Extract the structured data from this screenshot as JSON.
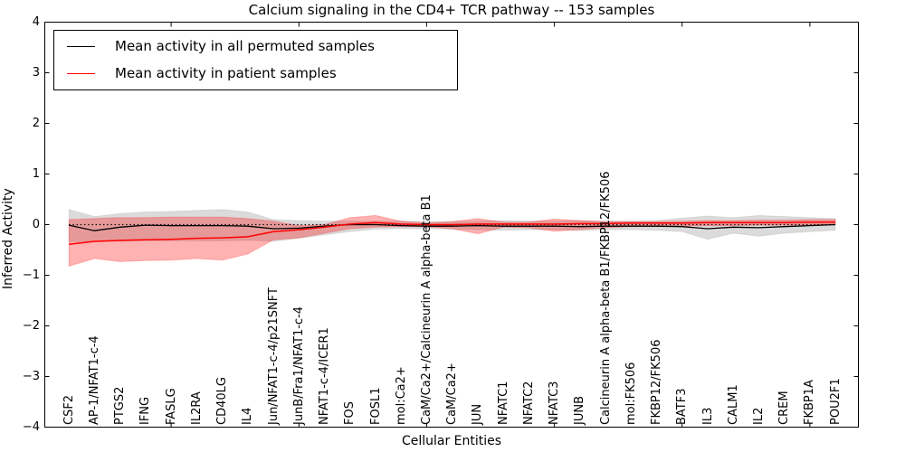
{
  "title": "Calcium signaling in the CD4+ TCR pathway -- 153 samples",
  "axes": {
    "ylabel": "Inferred Activity",
    "xlabel": "Cellular Entities",
    "yticks": [
      4,
      3,
      2,
      1,
      0,
      -1,
      -2,
      -3,
      -4
    ],
    "ylim": [
      -4,
      4
    ],
    "tick_direction": "in",
    "grid": false
  },
  "legend": {
    "location": "upper left",
    "items": [
      {
        "label": "Mean activity in all permuted samples",
        "color": "#000000"
      },
      {
        "label": "Mean activity in patient samples",
        "color": "#ff0000"
      }
    ]
  },
  "chart_data": {
    "type": "line",
    "title": "Calcium signaling in the CD4+ TCR pathway -- 153 samples",
    "xlabel": "Cellular Entities",
    "ylabel": "Inferred Activity",
    "ylim": [
      -4,
      4
    ],
    "grid": false,
    "legend_position": "upper left",
    "x_major_tick_indices": [
      4,
      9,
      14,
      19,
      24,
      29
    ],
    "baseline": {
      "y": 0,
      "style": "dotted",
      "color": "#000000"
    },
    "categories": [
      "CSF2",
      "AP-1/NFAT1-c-4",
      "PTGS2",
      "IFNG",
      "FASLG",
      "IL2RA",
      "CD40LG",
      "IL4",
      "Jun/NFAT1-c-4/p21SNFT",
      "JunB/Fra1/NFAT1-c-4",
      "NFAT1-c-4/ICER1",
      "FOS",
      "FOSL1",
      "mol:Ca2+",
      "CaM/Ca2+/Calcineurin A alpha-beta B1",
      "CaM/Ca2+",
      "JUN",
      "NFATC1",
      "NFATC2",
      "NFATC3",
      "JUNB",
      "Calcineurin A alpha-beta B1/FKBP12/FK506",
      "mol:FK506",
      "FKBP12/FK506",
      "BATF3",
      "IL3",
      "CALM1",
      "IL2",
      "CREM",
      "FKBP1A",
      "POU2F1"
    ],
    "series": [
      {
        "name": "Mean activity in all permuted samples",
        "color": "#000000",
        "width": 1.3,
        "values": [
          -0.01,
          -0.12,
          -0.05,
          -0.01,
          -0.02,
          -0.02,
          -0.02,
          -0.03,
          -0.08,
          -0.07,
          -0.03,
          0.0,
          0.0,
          -0.02,
          -0.03,
          -0.03,
          -0.02,
          -0.03,
          -0.03,
          -0.03,
          -0.04,
          -0.03,
          -0.03,
          -0.03,
          -0.04,
          -0.08,
          -0.05,
          -0.06,
          -0.04,
          -0.02,
          0.0
        ]
      },
      {
        "name": "Mean activity in patient samples",
        "color": "#ff0000",
        "width": 1.5,
        "values": [
          -0.39,
          -0.33,
          -0.31,
          -0.3,
          -0.29,
          -0.27,
          -0.26,
          -0.24,
          -0.14,
          -0.1,
          -0.05,
          0.01,
          0.04,
          0.01,
          0.0,
          0.0,
          0.01,
          0.01,
          0.01,
          0.01,
          0.02,
          0.02,
          0.03,
          0.03,
          0.03,
          0.04,
          0.04,
          0.04,
          0.04,
          0.05,
          0.05
        ]
      }
    ],
    "bands": [
      {
        "name": "permuted samples range",
        "color": "#000000",
        "opacity": 0.14,
        "edge": "rgba(0,0,0,0.08)",
        "upper": [
          0.3,
          0.16,
          0.22,
          0.25,
          0.26,
          0.28,
          0.3,
          0.25,
          0.1,
          0.08,
          0.07,
          0.07,
          0.07,
          0.07,
          0.06,
          0.06,
          0.07,
          0.08,
          0.07,
          0.07,
          0.08,
          0.07,
          0.07,
          0.08,
          0.13,
          0.17,
          0.14,
          0.18,
          0.16,
          0.14,
          0.12
        ],
        "lower": [
          -0.34,
          -0.33,
          -0.33,
          -0.32,
          -0.32,
          -0.32,
          -0.32,
          -0.31,
          -0.33,
          -0.27,
          -0.2,
          -0.14,
          -0.09,
          -0.08,
          -0.08,
          -0.09,
          -0.1,
          -0.11,
          -0.1,
          -0.1,
          -0.11,
          -0.1,
          -0.1,
          -0.11,
          -0.14,
          -0.29,
          -0.17,
          -0.23,
          -0.17,
          -0.14,
          -0.11
        ]
      },
      {
        "name": "patient samples range",
        "color": "#ff0000",
        "opacity": 0.3,
        "edge": "rgba(255,0,0,0.22)",
        "upper": [
          0.1,
          0.12,
          0.14,
          0.14,
          0.15,
          0.15,
          0.15,
          0.12,
          0.07,
          -0.02,
          0.0,
          0.14,
          0.18,
          0.07,
          0.03,
          0.06,
          0.12,
          0.05,
          0.05,
          0.11,
          0.08,
          0.06,
          0.06,
          0.06,
          0.07,
          0.08,
          0.08,
          0.09,
          0.09,
          0.1,
          0.1
        ],
        "lower": [
          -0.82,
          -0.67,
          -0.73,
          -0.71,
          -0.7,
          -0.67,
          -0.7,
          -0.58,
          -0.3,
          -0.26,
          -0.17,
          -0.08,
          -0.05,
          -0.04,
          -0.04,
          -0.08,
          -0.18,
          -0.05,
          -0.06,
          -0.13,
          -0.1,
          -0.06,
          -0.04,
          -0.04,
          -0.03,
          -0.02,
          -0.02,
          -0.01,
          -0.01,
          0.0,
          0.0
        ]
      }
    ]
  }
}
